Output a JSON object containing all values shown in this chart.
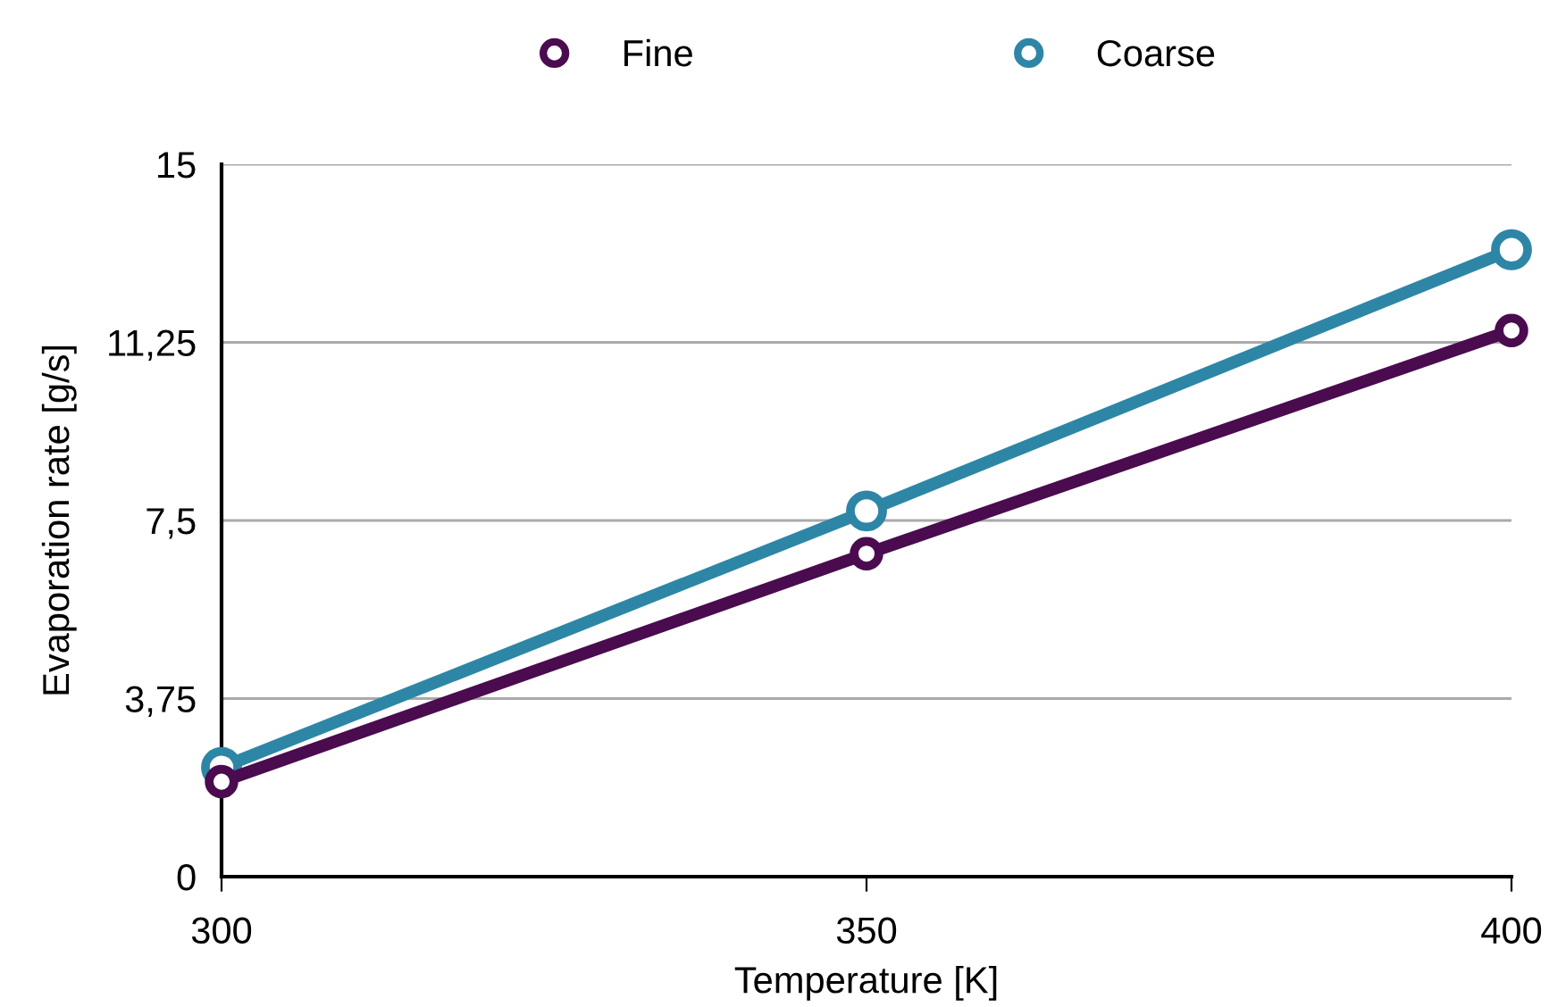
{
  "chart_data": {
    "type": "line",
    "xlabel": "Temperature [K]",
    "ylabel": "Evaporation rate [g/s]",
    "x": [
      300,
      350,
      400
    ],
    "series": [
      {
        "name": "Fine",
        "color": "#4a0b4f",
        "values": [
          2.0,
          6.8,
          11.5
        ]
      },
      {
        "name": "Coarse",
        "color": "#2e86a6",
        "values": [
          2.3,
          7.7,
          13.2
        ]
      }
    ],
    "xlim": [
      300,
      400
    ],
    "xticks": [
      300,
      350,
      400
    ],
    "ylim": [
      0,
      15
    ],
    "yticks": [
      0,
      {
        "value": 3.75,
        "label": "3,75"
      },
      {
        "value": 7.5,
        "label": "7,5"
      },
      {
        "value": 11.25,
        "label": "11,25"
      },
      15
    ],
    "grid": "y",
    "legend": "top",
    "marker": "circle",
    "line_style": "solid"
  }
}
